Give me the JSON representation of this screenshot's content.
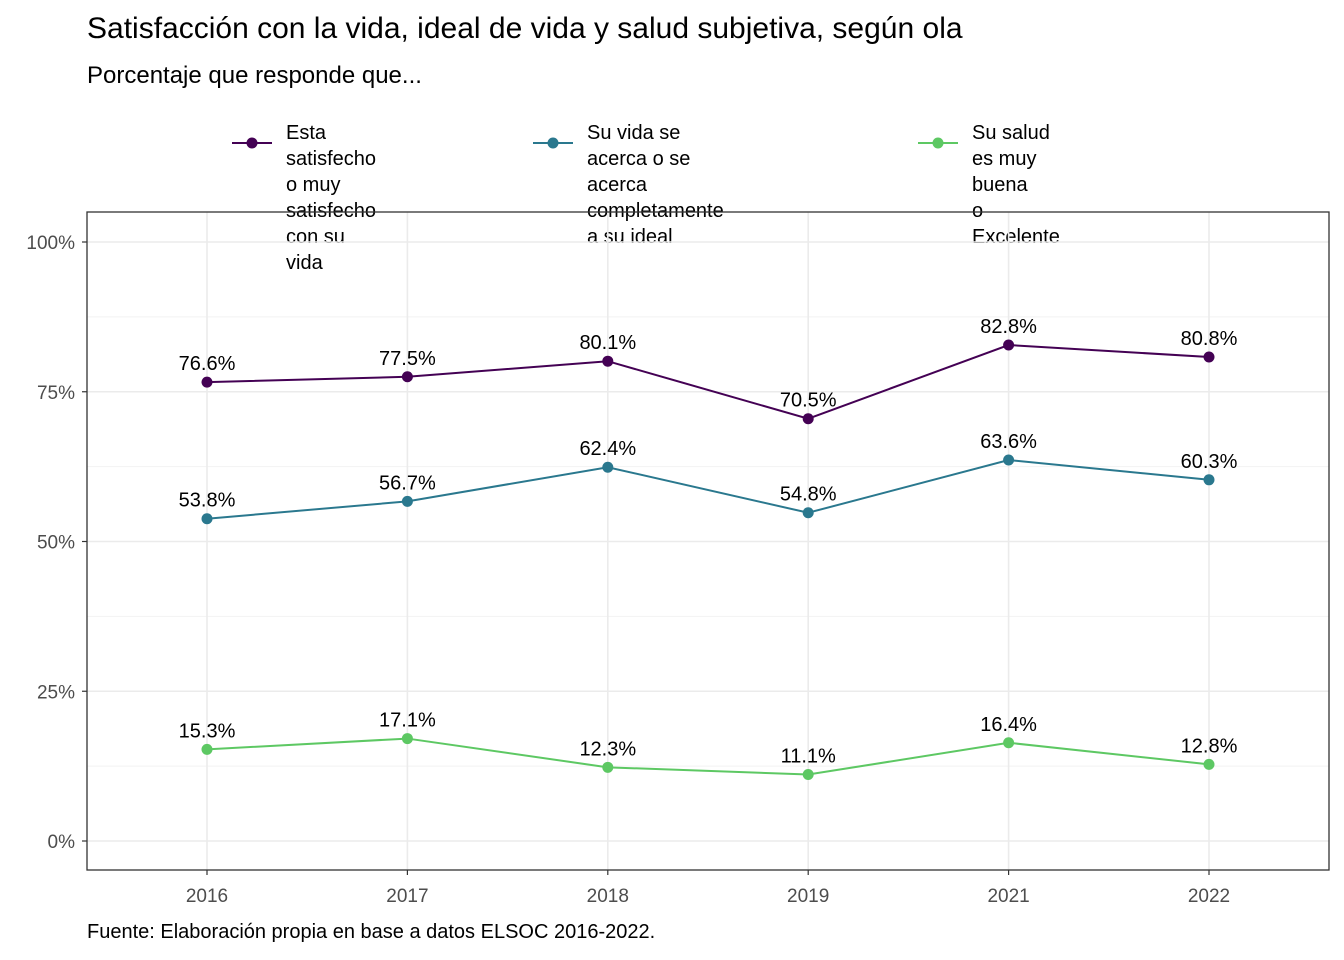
{
  "chart_data": {
    "type": "line",
    "title": "Satisfacción con la vida, ideal de vida y salud subjetiva, según ola",
    "subtitle": "Porcentaje que responde que...",
    "caption": "Fuente: Elaboración propia en base a datos ELSOC 2016-2022.",
    "xlabel": "",
    "ylabel": "",
    "categories": [
      "2016",
      "2017",
      "2018",
      "2019",
      "2021",
      "2022"
    ],
    "ylim": [
      0,
      100
    ],
    "yticks": [
      0,
      25,
      50,
      75,
      100
    ],
    "ytick_labels": [
      "0%",
      "25%",
      "50%",
      "75%",
      "100%"
    ],
    "grid": true,
    "legend_position": "top",
    "series": [
      {
        "name": "Esta satisfecho o muy\nsatisfecho con su vida",
        "color": "#440154",
        "values": [
          76.6,
          77.5,
          80.1,
          70.5,
          82.8,
          80.8
        ],
        "labels": [
          "76.6%",
          "77.5%",
          "80.1%",
          "70.5%",
          "82.8%",
          "80.8%"
        ]
      },
      {
        "name": "Su vida se acerca o se acerca\ncompletamente a su ideal",
        "color": "#2A788E",
        "values": [
          53.8,
          56.7,
          62.4,
          54.8,
          63.6,
          60.3
        ],
        "labels": [
          "53.8%",
          "56.7%",
          "62.4%",
          "54.8%",
          "63.6%",
          "60.3%"
        ]
      },
      {
        "name": "Su salud es muy buena\no Excelente",
        "color": "#5DC863",
        "values": [
          15.3,
          17.1,
          12.3,
          11.1,
          16.4,
          12.8
        ],
        "labels": [
          "15.3%",
          "17.1%",
          "12.3%",
          "11.1%",
          "16.4%",
          "12.8%"
        ]
      }
    ]
  }
}
